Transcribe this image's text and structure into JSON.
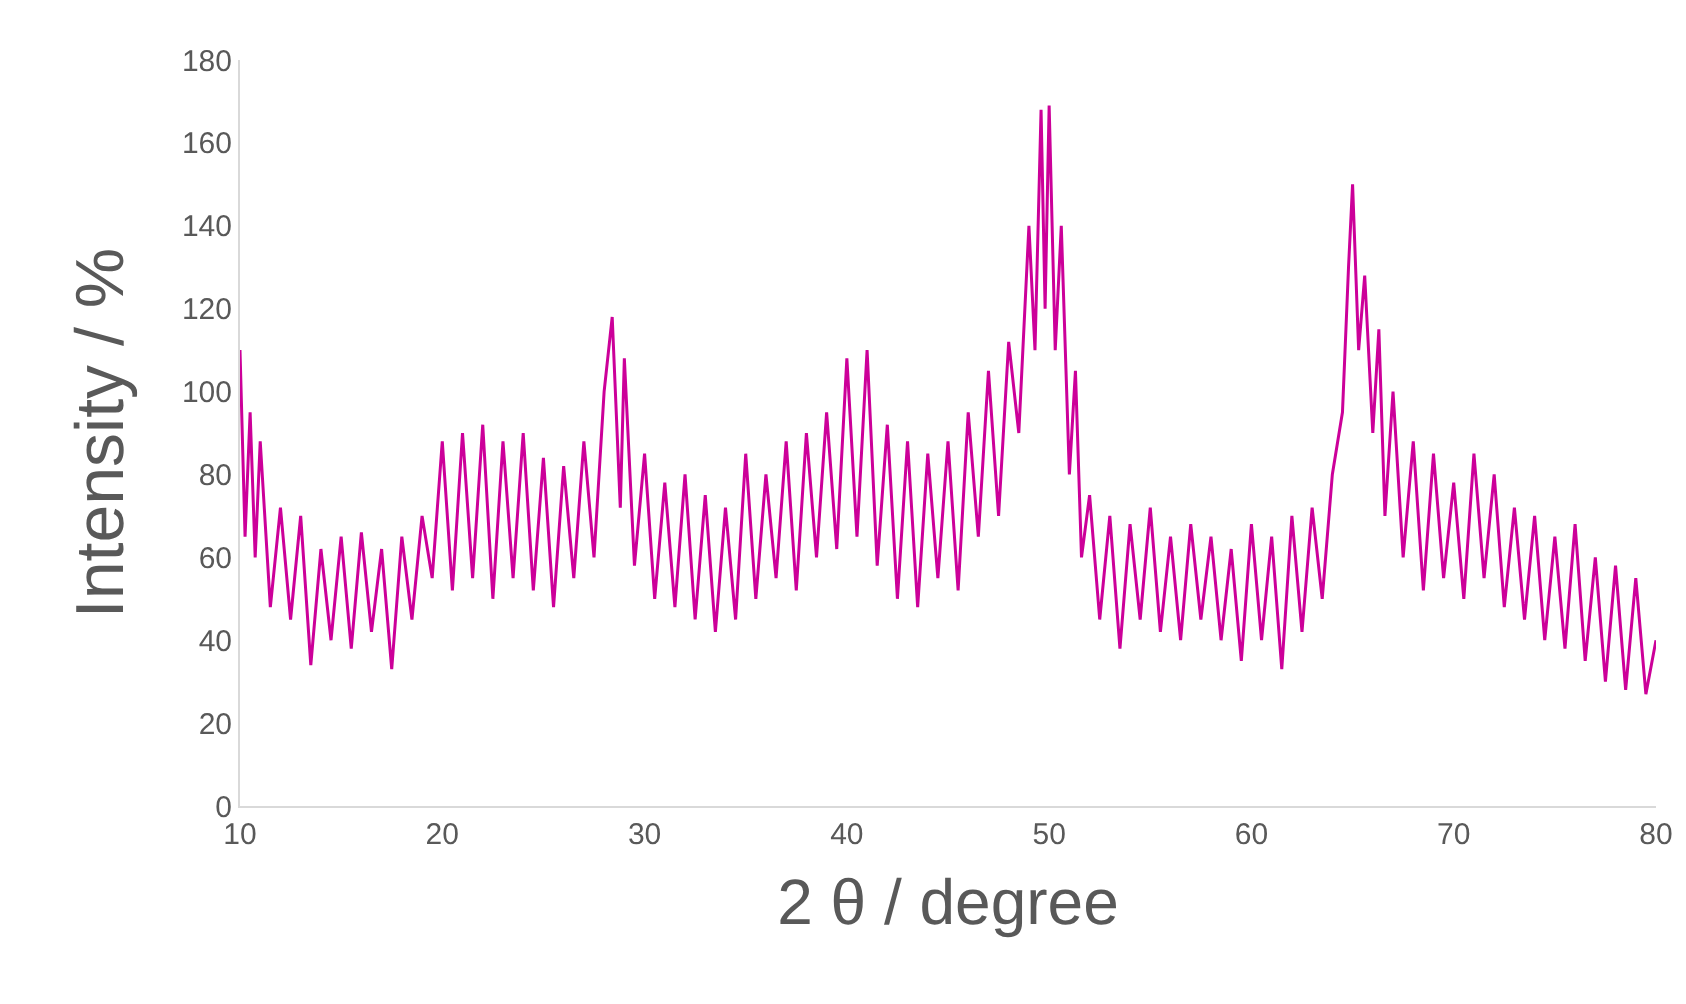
{
  "chart_data": {
    "type": "line",
    "xlabel": "2 θ / degree",
    "ylabel": "Intensity / %",
    "xlim": [
      10,
      80
    ],
    "xticks": [
      10,
      20,
      30,
      40,
      50,
      60,
      70,
      80
    ],
    "ylim": [
      0,
      180
    ],
    "yticks": [
      0,
      20,
      40,
      60,
      80,
      100,
      120,
      140,
      160,
      180
    ],
    "grid": false,
    "marker": "none",
    "line_style": "solid",
    "series": [
      {
        "color": "#cc0099",
        "x": [
          10,
          10.25,
          10.5,
          10.75,
          11,
          11.5,
          12,
          12.5,
          13,
          13.5,
          14,
          14.5,
          15,
          15.5,
          16,
          16.5,
          17,
          17.5,
          18,
          18.5,
          19,
          19.5,
          20,
          20.5,
          21,
          21.5,
          22,
          22.5,
          23,
          23.5,
          24,
          24.5,
          25,
          25.5,
          26,
          26.5,
          27,
          27.5,
          28,
          28.4,
          28.8,
          29,
          29.5,
          30,
          30.5,
          31,
          31.5,
          32,
          32.5,
          33,
          33.5,
          34,
          34.5,
          35,
          35.5,
          36,
          36.5,
          37,
          37.5,
          38,
          38.5,
          39,
          39.5,
          40,
          40.5,
          41,
          41.5,
          42,
          42.5,
          43,
          43.5,
          44,
          44.5,
          45,
          45.5,
          46,
          46.5,
          47,
          47.5,
          48,
          48.5,
          49,
          49.3,
          49.6,
          49.8,
          50,
          50.3,
          50.6,
          51,
          51.3,
          51.6,
          52,
          52.5,
          53,
          53.5,
          54,
          54.5,
          55,
          55.5,
          56,
          56.5,
          57,
          57.5,
          58,
          58.5,
          59,
          59.5,
          60,
          60.5,
          61,
          61.5,
          62,
          62.5,
          63,
          63.5,
          64,
          64.5,
          64.8,
          65,
          65.3,
          65.6,
          66,
          66.3,
          66.6,
          67,
          67.5,
          68,
          68.5,
          69,
          69.5,
          70,
          70.5,
          71,
          71.5,
          72,
          72.5,
          73,
          73.5,
          74,
          74.5,
          75,
          75.5,
          76,
          76.5,
          77,
          77.5,
          78,
          78.5,
          79,
          79.5,
          80
        ],
        "values": [
          110,
          65,
          95,
          60,
          88,
          48,
          72,
          45,
          70,
          34,
          62,
          40,
          65,
          38,
          66,
          42,
          62,
          33,
          65,
          45,
          70,
          55,
          88,
          52,
          90,
          55,
          92,
          50,
          88,
          55,
          90,
          52,
          84,
          48,
          82,
          55,
          88,
          60,
          100,
          118,
          72,
          108,
          58,
          85,
          50,
          78,
          48,
          80,
          45,
          75,
          42,
          72,
          45,
          85,
          50,
          80,
          55,
          88,
          52,
          90,
          60,
          95,
          62,
          108,
          65,
          110,
          58,
          92,
          50,
          88,
          48,
          85,
          55,
          88,
          52,
          95,
          65,
          105,
          70,
          112,
          90,
          140,
          110,
          168,
          120,
          169,
          110,
          140,
          80,
          105,
          60,
          75,
          45,
          70,
          38,
          68,
          45,
          72,
          42,
          65,
          40,
          68,
          45,
          65,
          40,
          62,
          35,
          68,
          40,
          65,
          33,
          70,
          42,
          72,
          50,
          80,
          95,
          130,
          150,
          110,
          128,
          90,
          115,
          70,
          100,
          60,
          88,
          52,
          85,
          55,
          78,
          50,
          85,
          55,
          80,
          48,
          72,
          45,
          70,
          40,
          65,
          38,
          68,
          35,
          60,
          30,
          58,
          28,
          55,
          27,
          40
        ]
      }
    ]
  }
}
